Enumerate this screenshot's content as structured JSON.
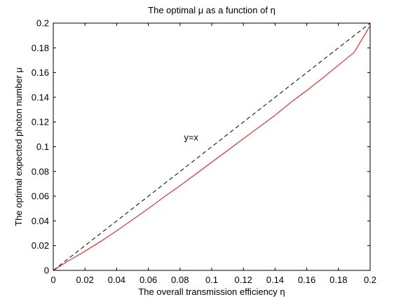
{
  "chart_data": {
    "type": "line",
    "title": "The optimal μ as a function of η",
    "xlabel": "The overall transmission efficiency η",
    "ylabel": "The optimal expected photon number μ",
    "xlim": [
      0,
      0.2
    ],
    "ylim": [
      0,
      0.2
    ],
    "x_ticks": [
      "0",
      "0.02",
      "0.04",
      "0.06",
      "0.08",
      "0.1",
      "0.12",
      "0.14",
      "0.16",
      "0.18",
      "0.2"
    ],
    "y_ticks": [
      "0",
      "0.02",
      "0.04",
      "0.06",
      "0.08",
      "0.1",
      "0.12",
      "0.14",
      "0.16",
      "0.18",
      "0.2"
    ],
    "grid": false,
    "legend": "none",
    "annotations": [
      {
        "text": "y=x",
        "x": 0.087,
        "y": 0.105
      }
    ],
    "series": [
      {
        "style": "solid",
        "color": "#ff0000",
        "x": [
          0,
          0.005,
          0.01,
          0.02,
          0.03,
          0.04,
          0.05,
          0.06,
          0.07,
          0.08,
          0.09,
          0.1,
          0.11,
          0.12,
          0.13,
          0.14,
          0.15,
          0.16,
          0.17,
          0.18,
          0.19,
          0.2
        ],
        "y": [
          0,
          0.004,
          0.008,
          0.0155,
          0.0235,
          0.032,
          0.041,
          0.05,
          0.0595,
          0.0685,
          0.078,
          0.0875,
          0.097,
          0.1065,
          0.116,
          0.1255,
          0.136,
          0.1455,
          0.1555,
          0.166,
          0.1765,
          0.198
        ]
      },
      {
        "style": "dashed",
        "color": "#000000",
        "x": [
          0,
          0.2
        ],
        "y": [
          0,
          0.2
        ]
      }
    ]
  }
}
